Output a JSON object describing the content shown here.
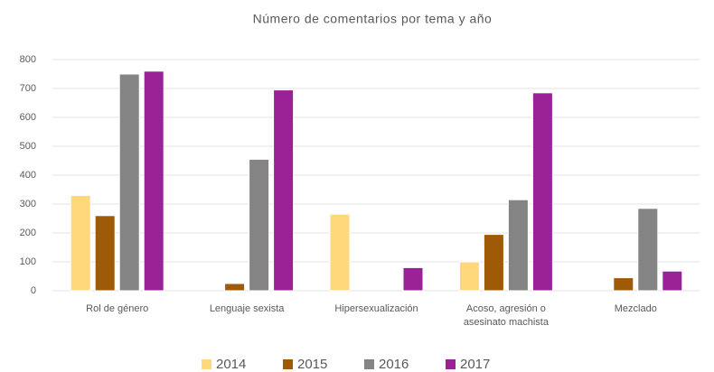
{
  "chart_data": {
    "type": "bar",
    "title": "Número de comentarios por tema y año",
    "categories": [
      "Rol de género",
      "Lenguaje sexista",
      "Hipersexualización",
      "Acoso, agresión o asesinato machista",
      "Mezclado"
    ],
    "series": [
      {
        "name": "2014",
        "color": "#ffd87c",
        "values": [
          330,
          0,
          265,
          100,
          0
        ]
      },
      {
        "name": "2015",
        "color": "#9e5a06",
        "values": [
          260,
          25,
          0,
          195,
          45
        ]
      },
      {
        "name": "2016",
        "color": "#848484",
        "values": [
          750,
          455,
          0,
          315,
          285
        ]
      },
      {
        "name": "2017",
        "color": "#9b2196",
        "values": [
          760,
          695,
          80,
          685,
          68
        ]
      }
    ],
    "ylim": [
      0,
      800
    ],
    "yticks": [
      0,
      100,
      200,
      300,
      400,
      500,
      600,
      700,
      800
    ],
    "grid": true,
    "legend": "bottom"
  }
}
